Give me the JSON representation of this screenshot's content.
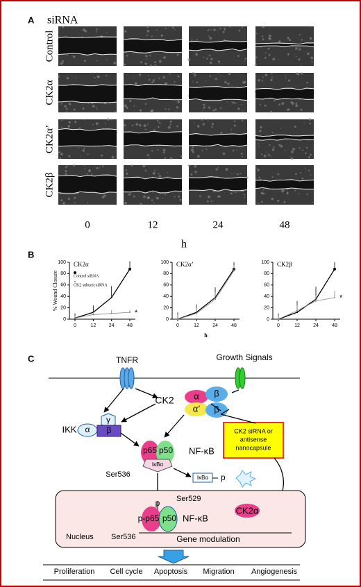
{
  "panel_a": {
    "label": "A",
    "title": "siRNA",
    "rows": [
      "Control",
      "CK2α",
      "CK2α’",
      "CK2β"
    ],
    "columns": [
      "0",
      "12",
      "24",
      "48"
    ],
    "x_label": "h"
  },
  "panel_b": {
    "label": "B"
  },
  "chart_data": [
    {
      "type": "line",
      "title": "CK2α",
      "y_label": "% Wound Closure",
      "categories": [
        "0",
        "12",
        "24",
        "48"
      ],
      "ylim": [
        0,
        100
      ],
      "yticks": [
        0,
        20,
        40,
        60,
        80,
        100
      ],
      "annotation": "*",
      "series": [
        {
          "name": "Control siRNA",
          "color": "#000000",
          "values": [
            2,
            12,
            38,
            88
          ],
          "errors": [
            8,
            12,
            20,
            14
          ]
        },
        {
          "name": "CK2 subunit siRNA",
          "color": "#888888",
          "values": [
            2,
            8,
            10,
            12
          ],
          "errors": [
            4,
            5,
            6,
            4
          ]
        }
      ]
    },
    {
      "type": "line",
      "title": "CK2α’",
      "x_label": "h",
      "categories": [
        "0",
        "12",
        "24",
        "48"
      ],
      "ylim": [
        0,
        100
      ],
      "yticks": [
        0,
        20,
        40,
        60,
        80,
        100
      ],
      "series": [
        {
          "color": "#000000",
          "values": [
            0,
            12,
            38,
            88
          ],
          "errors": [
            12,
            14,
            18,
            12
          ]
        },
        {
          "color": "#888888",
          "values": [
            0,
            10,
            35,
            85
          ],
          "errors": [
            8,
            10,
            12,
            10
          ]
        }
      ]
    },
    {
      "type": "line",
      "title": "CK2β",
      "categories": [
        "0",
        "12",
        "24",
        "48"
      ],
      "ylim": [
        0,
        100
      ],
      "yticks": [
        0,
        20,
        40,
        60,
        80,
        100
      ],
      "annotation": "*",
      "series": [
        {
          "color": "#000000",
          "values": [
            0,
            12,
            35,
            88
          ],
          "errors": [
            10,
            20,
            22,
            12
          ]
        },
        {
          "color": "#888888",
          "values": [
            0,
            15,
            32,
            38
          ],
          "errors": [
            6,
            10,
            10,
            12
          ]
        }
      ]
    }
  ],
  "panel_c": {
    "label": "C",
    "tnfr": "TNFR",
    "growth_signals": "Growth Signals",
    "ck2": "CK2",
    "ck2_complex": [
      "α",
      "β",
      "α’",
      "β"
    ],
    "ikk": "IKK",
    "ikk_complex": [
      "α",
      "γ",
      "β"
    ],
    "nfkb_top": {
      "p65": "p65",
      "p50": "p50",
      "ikba": "IκBα",
      "label": "NF-κB",
      "ser": "Ser536"
    },
    "degradation": {
      "ikba": "IκBα",
      "p": "p"
    },
    "box": [
      "CK2 siRNA or",
      "antisense",
      "nanocapsule"
    ],
    "nucleus": {
      "p": "p",
      "ser529": "Ser529",
      "p65": "p-p65",
      "p50": "p50",
      "label": "NF-κB",
      "ck2a": "CK2α",
      "name": "Nucleus",
      "ser536": "Ser536",
      "gene": "Gene modulation"
    },
    "outcomes": [
      "Proliferation",
      "Cell cycle",
      "Apoptosis",
      "Migration",
      "Angiogenesis"
    ]
  }
}
